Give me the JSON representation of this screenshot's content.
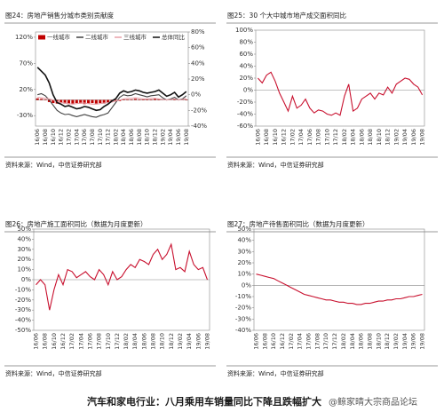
{
  "chart_data": [
    {
      "type": "combo",
      "title": "图24：房地产销售分城市类别贡献度",
      "source": "资料来源：Wind，中信证券研究部",
      "categories": [
        "16/06",
        null,
        "16/08",
        null,
        "16/10",
        null,
        "16/12",
        null,
        "17/02",
        null,
        "17/04",
        null,
        "17/06",
        null,
        "17/08",
        null,
        "17/10",
        null,
        "17/12",
        null,
        "18/02",
        null,
        "18/04",
        null,
        "18/06",
        null,
        "18/08",
        null,
        "18/10",
        null,
        "18/12",
        null,
        "19/02",
        null,
        "19/04",
        null,
        "19/06",
        null,
        "19/08"
      ],
      "ylim": [
        -50,
        130
      ],
      "yticks": [
        {
          "value": -30,
          "label": "-30%"
        },
        {
          "value": 20,
          "label": "20%"
        },
        {
          "value": 70,
          "label": "70%"
        },
        {
          "value": 120,
          "label": "120%"
        }
      ],
      "y2lim": [
        -40,
        80
      ],
      "y2ticks": [
        {
          "value": -40,
          "label": "-40%"
        },
        {
          "value": -20,
          "label": "-20%"
        },
        {
          "value": 0,
          "label": "0%"
        },
        {
          "value": 20,
          "label": "20%"
        },
        {
          "value": 40,
          "label": "40%"
        },
        {
          "value": 60,
          "label": "60%"
        },
        {
          "value": 80,
          "label": "80%"
        }
      ],
      "series": [
        {
          "name": "一线城市",
          "type": "bar",
          "color": "#c00000",
          "values": [
            3,
            2,
            1,
            -4,
            -6,
            -7,
            -6,
            -7,
            -8,
            -7,
            -6,
            -7,
            -8,
            -7,
            -6,
            -7,
            -6,
            -7,
            -5,
            -4,
            -3,
            -2,
            1,
            1,
            1,
            2,
            1,
            1,
            1,
            1,
            2,
            2,
            1,
            1,
            1,
            1,
            1,
            1,
            1
          ]
        },
        {
          "name": "二线城市",
          "type": "line",
          "color": "#404040",
          "values": [
            10,
            12,
            8,
            0,
            -10,
            -20,
            -25,
            -28,
            -27,
            -30,
            -32,
            -30,
            -28,
            -30,
            -32,
            -33,
            -30,
            -28,
            -25,
            -15,
            -5,
            5,
            10,
            8,
            9,
            12,
            10,
            8,
            6,
            8,
            9,
            10,
            4,
            0,
            2,
            5,
            0,
            2,
            8
          ]
        },
        {
          "name": "三线城市",
          "type": "line",
          "color": "#e8a0a8",
          "values": [
            5,
            4,
            3,
            2,
            0,
            -3,
            -5,
            -6,
            -7,
            -8,
            -7,
            -6,
            -6,
            -7,
            -8,
            -8,
            -7,
            -6,
            -5,
            -4,
            -2,
            0,
            2,
            3,
            3,
            4,
            3,
            2,
            2,
            3,
            3,
            2,
            1,
            0,
            1,
            2,
            0,
            1,
            3
          ]
        },
        {
          "name": "总体同比",
          "type": "line",
          "axis": "y2",
          "color": "#111111",
          "values": [
            35,
            30,
            25,
            15,
            0,
            -10,
            -12,
            -15,
            -14,
            -16,
            -18,
            -17,
            -15,
            -16,
            -18,
            -20,
            -19,
            -15,
            -12,
            -8,
            -5,
            2,
            5,
            3,
            4,
            6,
            5,
            3,
            2,
            3,
            4,
            6,
            2,
            -2,
            0,
            3,
            -3,
            0,
            4
          ]
        }
      ]
    },
    {
      "type": "line",
      "title": "图25：30 个大中城市地产成交面积同比",
      "source": "资料来源：Wind，中信证券研究部",
      "categories": [
        "16/06",
        null,
        "16/08",
        null,
        "16/10",
        null,
        "16/12",
        null,
        "17/02",
        null,
        "17/04",
        null,
        "17/06",
        null,
        "17/08",
        null,
        "17/10",
        null,
        "17/12",
        null,
        "18/02",
        null,
        "18/04",
        null,
        "18/06",
        null,
        "18/08",
        null,
        "18/10",
        null,
        "18/12",
        null,
        "19/02",
        null,
        "19/04",
        null,
        "19/06",
        null,
        "19/08"
      ],
      "ylim": [
        -60,
        100
      ],
      "yticks": [
        {
          "value": -60,
          "label": "-60%"
        },
        {
          "value": -40,
          "label": "-40%"
        },
        {
          "value": -20,
          "label": "-20%"
        },
        {
          "value": 0,
          "label": "0%"
        },
        {
          "value": 20,
          "label": "20%"
        },
        {
          "value": 40,
          "label": "40%"
        },
        {
          "value": 60,
          "label": "60%"
        },
        {
          "value": 80,
          "label": "80%"
        },
        {
          "value": 100,
          "label": "100%"
        }
      ],
      "series": [
        {
          "name": "30大中城市成交面积同比",
          "color": "#c8102e",
          "values": [
            20,
            12,
            25,
            30,
            15,
            -5,
            -20,
            -35,
            -10,
            -30,
            -25,
            -15,
            -30,
            -38,
            -33,
            -35,
            -40,
            -42,
            -38,
            -42,
            -10,
            10,
            -35,
            -30,
            -15,
            -10,
            -5,
            -15,
            -5,
            -8,
            5,
            -5,
            10,
            15,
            20,
            18,
            10,
            5,
            -8
          ]
        }
      ]
    },
    {
      "type": "line",
      "title": "图26：房地产施工面积同比（数据为月度更新）",
      "source": "资料来源：Wind，中信证券研究部",
      "categories": [
        "16/06",
        null,
        "16/08",
        null,
        "16/10",
        null,
        "16/12",
        null,
        "17/02",
        null,
        "17/04",
        null,
        "17/06",
        null,
        "17/08",
        null,
        "17/10",
        null,
        "17/12",
        null,
        "18/02",
        null,
        "18/04",
        null,
        "18/06",
        null,
        "18/08",
        null,
        "18/10",
        null,
        "18/12",
        null,
        "19/02",
        null,
        "19/04",
        null,
        "19/06",
        null,
        "19/08"
      ],
      "ylim": [
        -50,
        50
      ],
      "yticks": [
        {
          "value": -50,
          "label": "-50%"
        },
        {
          "value": -40,
          "label": "-40%"
        },
        {
          "value": -30,
          "label": "-30%"
        },
        {
          "value": -20,
          "label": "-20%"
        },
        {
          "value": -10,
          "label": "-10%"
        },
        {
          "value": 0,
          "label": "0%"
        },
        {
          "value": 10,
          "label": "10%"
        },
        {
          "value": 20,
          "label": "20%"
        },
        {
          "value": 30,
          "label": "30%"
        },
        {
          "value": 40,
          "label": "40%"
        },
        {
          "value": 50,
          "label": "50%"
        }
      ],
      "series": [
        {
          "name": "施工面积同比",
          "color": "#c8102e",
          "values": [
            -5,
            0,
            -5,
            -30,
            -10,
            5,
            -5,
            10,
            8,
            2,
            5,
            8,
            3,
            0,
            10,
            5,
            -5,
            8,
            0,
            3,
            10,
            15,
            12,
            20,
            18,
            15,
            25,
            30,
            20,
            25,
            35,
            10,
            12,
            8,
            28,
            15,
            10,
            12,
            0
          ]
        }
      ]
    },
    {
      "type": "line",
      "title": "图27：房地产待售面积同比（数据为月度更新）",
      "source": "资料来源：Wind，中信证券研究部",
      "categories": [
        "16/06",
        null,
        "16/08",
        null,
        "16/10",
        null,
        "16/12",
        null,
        "17/02",
        null,
        "17/04",
        null,
        "17/06",
        null,
        "17/08",
        null,
        "17/10",
        null,
        "17/12",
        null,
        "18/02",
        null,
        "18/04",
        null,
        "18/06",
        null,
        "18/08",
        null,
        "18/10",
        null,
        "18/12",
        null,
        "19/02",
        null,
        "19/04",
        null,
        "19/06",
        null,
        "19/08"
      ],
      "ylim": [
        -40,
        50
      ],
      "yticks": [
        {
          "value": -40,
          "label": "-40%"
        },
        {
          "value": -30,
          "label": "-30%"
        },
        {
          "value": -20,
          "label": "-20%"
        },
        {
          "value": -10,
          "label": "-10%"
        },
        {
          "value": 0,
          "label": "0%"
        },
        {
          "value": 10,
          "label": "10%"
        },
        {
          "value": 20,
          "label": "20%"
        },
        {
          "value": 30,
          "label": "30%"
        },
        {
          "value": 40,
          "label": "40%"
        },
        {
          "value": 50,
          "label": "50%"
        }
      ],
      "series": [
        {
          "name": "待售面积同比",
          "color": "#c8102e",
          "values": [
            10,
            9,
            8,
            7,
            6,
            4,
            2,
            0,
            -2,
            -4,
            -6,
            -8,
            -9,
            -10,
            -11,
            -12,
            -13,
            -13,
            -14,
            -15,
            -15,
            -16,
            -16,
            -17,
            -17,
            -16,
            -16,
            -15,
            -14,
            -14,
            -13,
            -13,
            -12,
            -12,
            -11,
            -10,
            -10,
            -9,
            -8
          ]
        }
      ]
    }
  ],
  "footer": {
    "title": "汽车和家电行业：八月乘用车销量同比下降且跌幅扩大",
    "watermark": "@鲸家晴大宗商品论坛"
  }
}
